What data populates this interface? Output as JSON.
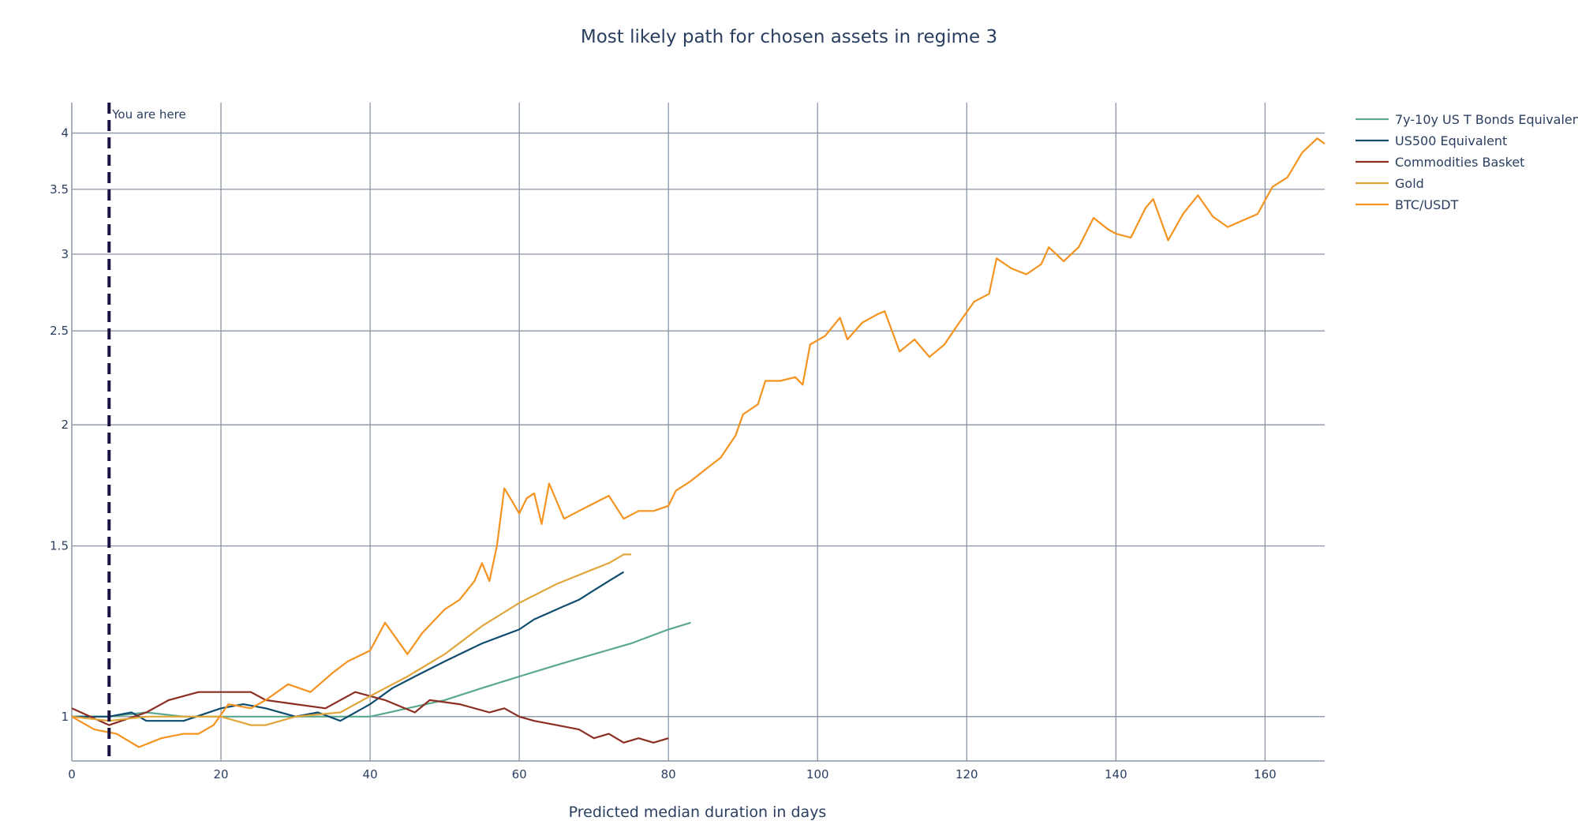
{
  "chart_data": {
    "type": "line",
    "title": "Most likely path for chosen assets in regime 3",
    "xlabel": "Predicted median duration in days",
    "ylabel": "",
    "xlim": [
      0,
      168
    ],
    "ylim": [
      0.9,
      4.3
    ],
    "y_scale": "log",
    "grid": true,
    "legend_position": "top-right",
    "x_ticks": [
      0,
      20,
      40,
      60,
      80,
      100,
      120,
      140,
      160
    ],
    "x_tick_labels": [
      "0",
      "20",
      "40",
      "60",
      "80",
      "100",
      "120",
      "140",
      "160"
    ],
    "y_ticks": [
      1,
      1.5,
      2,
      2.5,
      3,
      3.5,
      4
    ],
    "y_tick_labels": [
      "1",
      "1.5",
      "2",
      "2.5",
      "3",
      "3.5",
      "4"
    ],
    "annotation": {
      "x": 5,
      "text": "You are here",
      "line_color": "#1a1240"
    },
    "series": [
      {
        "name": "7y-10y US T Bonds Equivalent",
        "color": "#5aa88f",
        "x": [
          0,
          5,
          10,
          15,
          20,
          25,
          30,
          35,
          40,
          45,
          50,
          55,
          60,
          65,
          70,
          75,
          80,
          83
        ],
        "y": [
          1.0,
          1.0,
          1.01,
          1.0,
          1.0,
          1.0,
          1.0,
          1.0,
          1.0,
          1.02,
          1.04,
          1.07,
          1.1,
          1.13,
          1.16,
          1.19,
          1.23,
          1.25
        ]
      },
      {
        "name": "US500 Equivalent",
        "color": "#0f4c6e",
        "x": [
          0,
          5,
          8,
          10,
          15,
          20,
          23,
          26,
          30,
          33,
          36,
          40,
          43,
          46,
          50,
          55,
          60,
          62,
          64,
          66,
          68,
          70,
          72,
          74
        ],
        "y": [
          1.0,
          1.0,
          1.01,
          0.99,
          0.99,
          1.02,
          1.03,
          1.02,
          1.0,
          1.01,
          0.99,
          1.03,
          1.07,
          1.1,
          1.14,
          1.19,
          1.23,
          1.26,
          1.28,
          1.3,
          1.32,
          1.35,
          1.38,
          1.41
        ]
      },
      {
        "name": "Commodities Basket",
        "color": "#8b2e24",
        "x": [
          0,
          5,
          10,
          13,
          17,
          20,
          24,
          26,
          30,
          34,
          38,
          42,
          46,
          48,
          52,
          56,
          58,
          60,
          62,
          65,
          68,
          70,
          72,
          74,
          76,
          78,
          80
        ],
        "y": [
          1.02,
          0.98,
          1.01,
          1.04,
          1.06,
          1.06,
          1.06,
          1.04,
          1.03,
          1.02,
          1.06,
          1.04,
          1.01,
          1.04,
          1.03,
          1.01,
          1.02,
          1.0,
          0.99,
          0.98,
          0.97,
          0.95,
          0.96,
          0.94,
          0.95,
          0.94,
          0.95
        ]
      },
      {
        "name": "Gold",
        "color": "#e0a63a",
        "x": [
          0,
          5,
          10,
          15,
          20,
          22,
          24,
          26,
          30,
          36,
          40,
          45,
          50,
          55,
          60,
          65,
          70,
          72,
          74,
          75
        ],
        "y": [
          1.0,
          0.99,
          1.0,
          1.0,
          1.0,
          0.99,
          0.98,
          0.98,
          1.0,
          1.01,
          1.05,
          1.1,
          1.16,
          1.24,
          1.31,
          1.37,
          1.42,
          1.44,
          1.47,
          1.47
        ]
      },
      {
        "name": "BTC/USDT",
        "color": "#f4931f",
        "x": [
          0,
          3,
          6,
          9,
          12,
          15,
          17,
          19,
          21,
          24,
          26,
          29,
          32,
          35,
          37,
          40,
          42,
          45,
          47,
          50,
          52,
          54,
          55,
          56,
          57,
          58,
          59,
          60,
          61,
          62,
          63,
          64,
          66,
          68,
          70,
          72,
          74,
          76,
          78,
          80,
          81,
          83,
          85,
          87,
          89,
          90,
          92,
          93,
          95,
          97,
          98,
          99,
          101,
          103,
          104,
          106,
          108,
          109,
          111,
          113,
          115,
          117,
          119,
          121,
          123,
          124,
          126,
          128,
          130,
          131,
          133,
          135,
          137,
          139,
          140,
          142,
          144,
          145,
          147,
          149,
          151,
          153,
          155,
          157,
          159,
          161,
          163,
          165,
          167,
          168
        ],
        "y": [
          1.0,
          0.97,
          0.96,
          0.93,
          0.95,
          0.96,
          0.96,
          0.98,
          1.03,
          1.02,
          1.04,
          1.08,
          1.06,
          1.11,
          1.14,
          1.17,
          1.25,
          1.16,
          1.22,
          1.29,
          1.32,
          1.38,
          1.44,
          1.38,
          1.5,
          1.72,
          1.67,
          1.62,
          1.68,
          1.7,
          1.58,
          1.74,
          1.6,
          1.63,
          1.66,
          1.69,
          1.6,
          1.63,
          1.63,
          1.65,
          1.71,
          1.75,
          1.8,
          1.85,
          1.95,
          2.05,
          2.1,
          2.22,
          2.22,
          2.24,
          2.2,
          2.42,
          2.47,
          2.58,
          2.45,
          2.55,
          2.6,
          2.62,
          2.38,
          2.45,
          2.35,
          2.42,
          2.55,
          2.68,
          2.73,
          2.97,
          2.9,
          2.86,
          2.93,
          3.05,
          2.95,
          3.05,
          3.27,
          3.18,
          3.15,
          3.12,
          3.35,
          3.42,
          3.1,
          3.3,
          3.45,
          3.28,
          3.2,
          3.25,
          3.3,
          3.52,
          3.6,
          3.82,
          3.95,
          3.9
        ]
      }
    ]
  }
}
